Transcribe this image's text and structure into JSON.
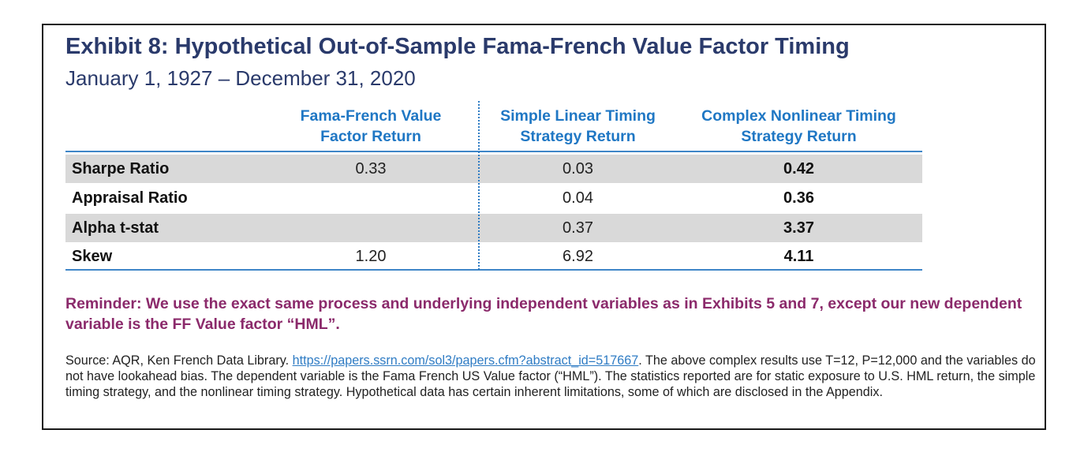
{
  "title": "Exhibit 8: Hypothetical Out-of-Sample Fama-French Value Factor Timing",
  "subtitle": "January 1, 1927 – December 31, 2020",
  "columns": [
    {
      "line1": "Fama-French Value",
      "line2": "Factor Return"
    },
    {
      "line1": "Simple Linear Timing",
      "line2": "Strategy Return"
    },
    {
      "line1": "Complex Nonlinear Timing",
      "line2": "Strategy Return"
    }
  ],
  "rows": [
    {
      "label": "Sharpe Ratio",
      "ff": "0.33",
      "linear": "0.03",
      "nonlinear": "0.42",
      "shaded": true
    },
    {
      "label": "Appraisal Ratio",
      "ff": "",
      "linear": "0.04",
      "nonlinear": "0.36",
      "shaded": false
    },
    {
      "label": "Alpha t-stat",
      "ff": "",
      "linear": "0.37",
      "nonlinear": "3.37",
      "shaded": true
    },
    {
      "label": "Skew",
      "ff": "1.20",
      "linear": "6.92",
      "nonlinear": "4.11",
      "shaded": false
    }
  ],
  "reminder": "Reminder: We use the exact same process and underlying independent variables as in Exhibits 5 and 7, except our new dependent variable is the FF Value factor “HML”.",
  "source": {
    "prefix": "Source: AQR, Ken French Data Library. ",
    "link": "https://papers.ssrn.com/sol3/papers.cfm?abstract_id=517667",
    "suffix": ". The above complex results use T=12, P=12,000 and the variables do not have lookahead bias. The dependent variable is the Fama French US Value factor (“HML”). The statistics reported are for static exposure to U.S. HML return, the simple timing strategy, and the nonlinear timing strategy. Hypothetical data has certain inherent limitations, some of which are disclosed in the Appendix."
  },
  "colors": {
    "title": "#2a3a6b",
    "column_header": "#1f77c4",
    "rule": "#3f86c8",
    "row_shade": "#d9d9d9",
    "reminder": "#8b2a6b",
    "link": "#2f7cc4"
  }
}
